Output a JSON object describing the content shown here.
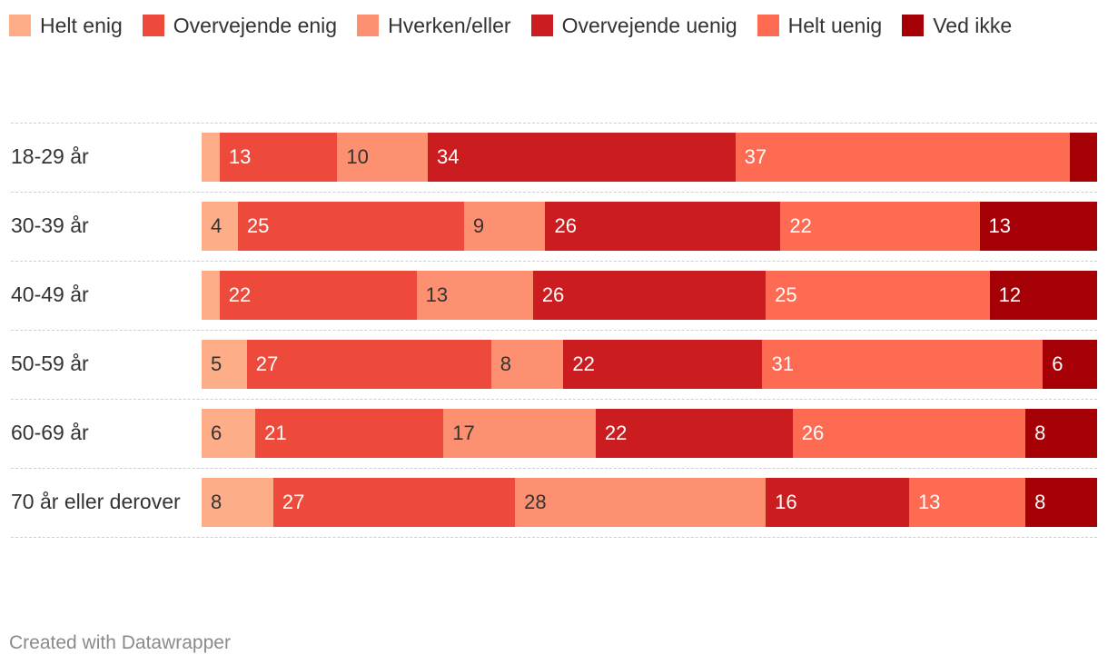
{
  "chart_data": {
    "type": "bar",
    "orientation": "horizontal",
    "stacked": true,
    "categories": [
      "18-29 år",
      "30-39 år",
      "40-49 år",
      "50-59 år",
      "60-69 år",
      "70 år eller derover"
    ],
    "series": [
      {
        "name": "Helt enig",
        "color": "#fdae89",
        "values": [
          2,
          4,
          2,
          5,
          6,
          8
        ],
        "labels": [
          "",
          "4",
          "",
          "5",
          "6",
          "8"
        ]
      },
      {
        "name": "Overvejende enig",
        "color": "#ee4a3c",
        "values": [
          13,
          25,
          22,
          27,
          21,
          27
        ],
        "labels": [
          "13",
          "25",
          "22",
          "27",
          "21",
          "27"
        ]
      },
      {
        "name": "Hverken/eller",
        "color": "#fc9070",
        "values": [
          10,
          9,
          13,
          8,
          17,
          28
        ],
        "labels": [
          "10",
          "9",
          "13",
          "8",
          "17",
          "28"
        ]
      },
      {
        "name": "Overvejende uenig",
        "color": "#cb1d1f",
        "values": [
          34,
          26,
          26,
          22,
          22,
          16
        ],
        "labels": [
          "34",
          "26",
          "26",
          "22",
          "22",
          "16"
        ]
      },
      {
        "name": "Helt uenig",
        "color": "#fe6b53",
        "values": [
          37,
          22,
          25,
          31,
          26,
          13
        ],
        "labels": [
          "37",
          "22",
          "25",
          "31",
          "26",
          "13"
        ]
      },
      {
        "name": "Ved ikke",
        "color": "#a50005",
        "values": [
          3,
          13,
          12,
          6,
          8,
          8
        ],
        "labels": [
          "",
          "13",
          "12",
          "6",
          "8",
          "8"
        ]
      }
    ],
    "legend_position": "top-left",
    "grid": false
  },
  "footer": {
    "credit": "Created with Datawrapper"
  }
}
